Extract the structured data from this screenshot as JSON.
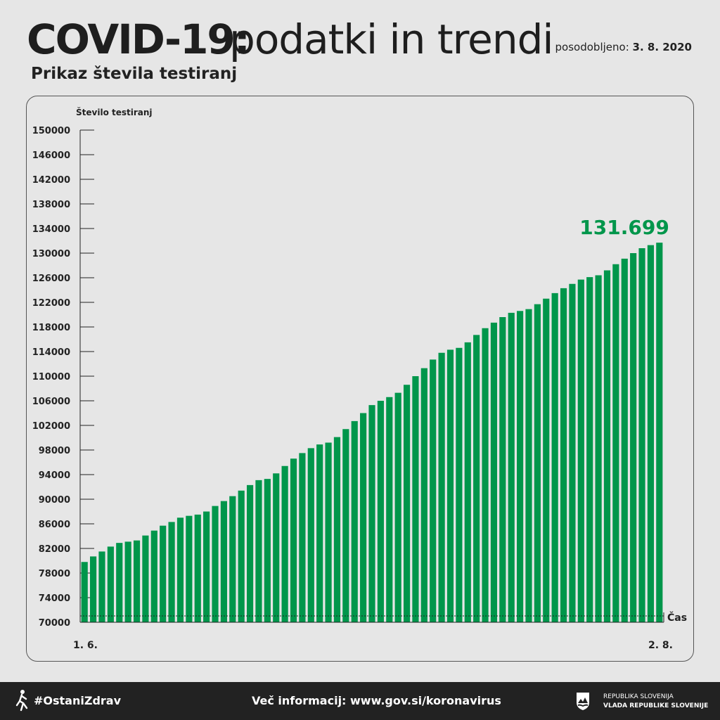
{
  "header": {
    "title_bold": "COVID-19:",
    "title_rest": "podatki in trendi",
    "updated_label": "posodobljeno:",
    "updated_date": "3. 8. 2020",
    "subtitle": "Prikaz števila testiranj"
  },
  "colors": {
    "bar": "#00964b",
    "highlight": "#00964b",
    "text": "#222222",
    "background": "#e6e6e6",
    "footer": "#222222"
  },
  "chart_data": {
    "type": "bar",
    "title": "Prikaz števila testiranj",
    "ylabel": "Število testiranj",
    "xlabel": "Čas",
    "ylim": [
      70000,
      150000
    ],
    "yticks": [
      70000,
      74000,
      78000,
      82000,
      86000,
      90000,
      94000,
      98000,
      102000,
      106000,
      110000,
      114000,
      118000,
      122000,
      126000,
      130000,
      134000,
      138000,
      142000,
      146000,
      150000
    ],
    "x_start_label": "1. 6.",
    "x_end_label": "2. 8.",
    "highlight_label": "131.699",
    "values": [
      79800,
      80700,
      81500,
      82300,
      82900,
      83100,
      83300,
      84100,
      84900,
      85700,
      86300,
      87000,
      87300,
      87500,
      88000,
      88900,
      89700,
      90500,
      91400,
      92300,
      93100,
      93300,
      94200,
      95400,
      96600,
      97500,
      98300,
      98900,
      99200,
      100100,
      101400,
      102700,
      104000,
      105300,
      106000,
      106600,
      107300,
      108600,
      110000,
      111300,
      112700,
      113800,
      114300,
      114600,
      115500,
      116700,
      117800,
      118700,
      119600,
      120300,
      120600,
      120900,
      121700,
      122600,
      123500,
      124300,
      125000,
      125700,
      126100,
      126400,
      127200,
      128200,
      129100,
      130000,
      130800,
      131300,
      131699
    ]
  },
  "footer": {
    "hashtag": "#OstaniZdrav",
    "more_info": "Več informacij: www.gov.si/koronavirus",
    "gov_line1": "REPUBLIKA SLOVENIJA",
    "gov_line2": "VLADA REPUBLIKE SLOVENIJE",
    "runner_icon": "runner-icon",
    "coat_icon": "coat-of-arms-icon"
  }
}
